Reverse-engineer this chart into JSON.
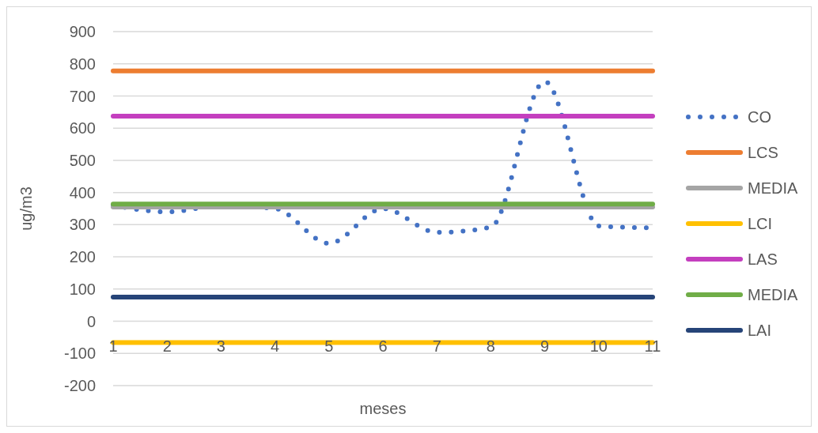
{
  "chart_data": {
    "type": "line",
    "xlabel": "meses",
    "ylabel": "ug/m3",
    "categories": [
      "1",
      "2",
      "3",
      "4",
      "5",
      "6",
      "7",
      "8",
      "9",
      "10",
      "11"
    ],
    "series": [
      {
        "name": "CO",
        "color": "#4472c4",
        "line_style": "dotted",
        "values": [
          360,
          340,
          358,
          350,
          242,
          350,
          276,
          292,
          745,
          296,
          290
        ]
      },
      {
        "name": "LCS",
        "color": "#ed7d31",
        "values": [
          778,
          778,
          778,
          778,
          778,
          778,
          778,
          778,
          778,
          778,
          778
        ]
      },
      {
        "name": "MEDIA",
        "color": "#a5a5a5",
        "values": [
          355,
          355,
          355,
          355,
          355,
          355,
          355,
          355,
          355,
          355,
          355
        ]
      },
      {
        "name": "LCI",
        "color": "#ffc000",
        "values": [
          -66,
          -66,
          -66,
          -66,
          -66,
          -66,
          -66,
          -66,
          -66,
          -66,
          -66
        ]
      },
      {
        "name": "LAS",
        "color": "#c43fbf",
        "values": [
          637,
          637,
          637,
          637,
          637,
          637,
          637,
          637,
          637,
          637,
          637
        ]
      },
      {
        "name": "MEDIA",
        "color": "#70ad47",
        "values": [
          364,
          364,
          364,
          364,
          364,
          364,
          364,
          364,
          364,
          364,
          364
        ]
      },
      {
        "name": "LAI",
        "color": "#264478",
        "values": [
          75,
          75,
          75,
          75,
          75,
          75,
          75,
          75,
          75,
          75,
          75
        ]
      }
    ],
    "ylim": [
      -200,
      900
    ],
    "yticks": [
      -200,
      -100,
      0,
      100,
      200,
      300,
      400,
      500,
      600,
      700,
      800,
      900
    ],
    "grid": "y",
    "legend": "right",
    "line_style": "solid"
  }
}
